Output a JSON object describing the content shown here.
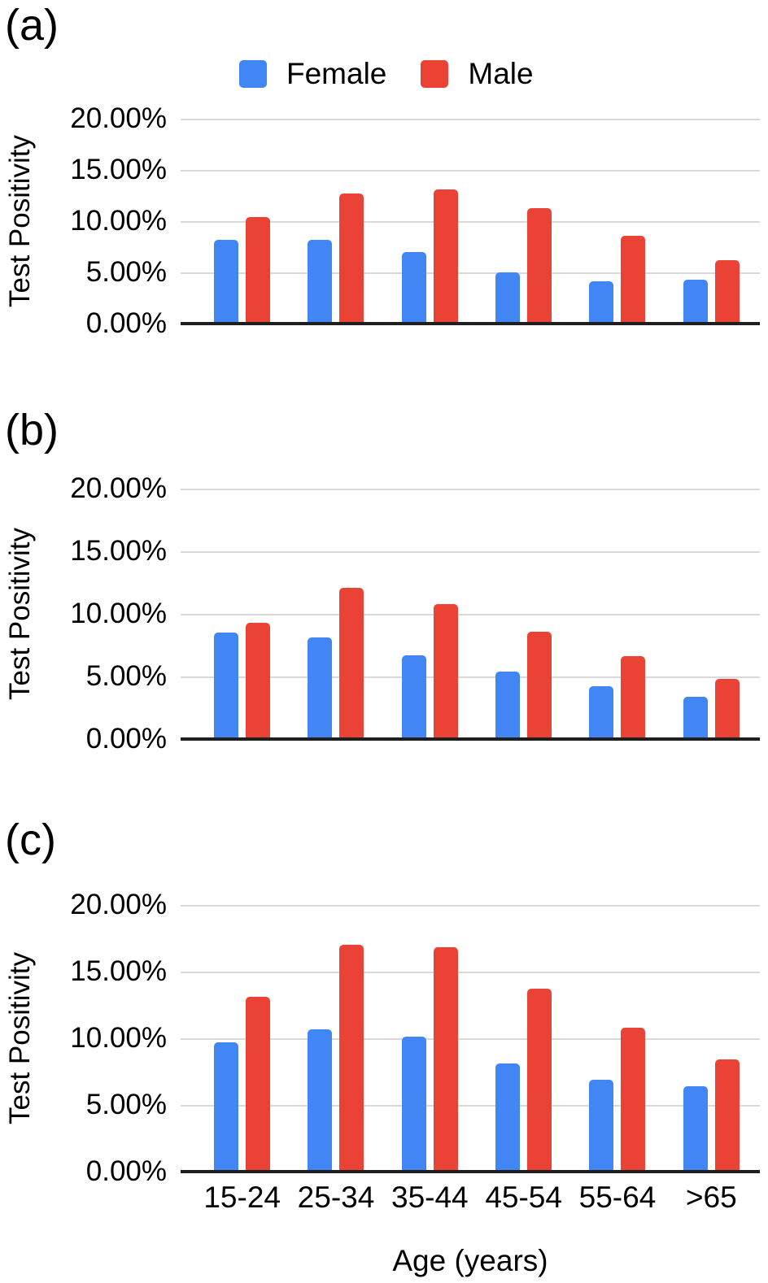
{
  "y_axis": {
    "title": "Test Positivity",
    "tick_labels": [
      "20.00%",
      "15.00%",
      "10.00%",
      "5.00%",
      "0.00%"
    ],
    "min": 0,
    "max": 20
  },
  "x_axis": {
    "title": "Age (years)",
    "categories": [
      "15-24",
      "25-34",
      "35-44",
      "45-54",
      "55-64",
      ">65"
    ]
  },
  "legend": {
    "items": [
      {
        "label": "Female",
        "color": "#4285F4"
      },
      {
        "label": "Male",
        "color": "#EA4335"
      }
    ]
  },
  "chart_data": [
    {
      "type": "bar",
      "panel_label": "(a)",
      "categories": [
        "15-24",
        "25-34",
        "35-44",
        "45-54",
        "55-64",
        ">65"
      ],
      "series": [
        {
          "name": "Female",
          "color": "#4285F4",
          "values": [
            8.2,
            8.2,
            7.0,
            5.0,
            4.1,
            4.3
          ]
        },
        {
          "name": "Male",
          "color": "#EA4335",
          "values": [
            10.4,
            12.7,
            13.1,
            11.3,
            8.6,
            6.2
          ]
        }
      ],
      "ylabel": "Test Positivity",
      "xlabel": "",
      "ylim": [
        0,
        20
      ],
      "grid": true,
      "legend_position": "top"
    },
    {
      "type": "bar",
      "panel_label": "(b)",
      "categories": [
        "15-24",
        "25-34",
        "35-44",
        "45-54",
        "55-64",
        ">65"
      ],
      "series": [
        {
          "name": "Female",
          "color": "#4285F4",
          "values": [
            8.5,
            8.1,
            6.7,
            5.4,
            4.2,
            3.4
          ]
        },
        {
          "name": "Male",
          "color": "#EA4335",
          "values": [
            9.3,
            12.1,
            10.8,
            8.6,
            6.6,
            4.8
          ]
        }
      ],
      "ylabel": "Test Positivity",
      "xlabel": "",
      "ylim": [
        0,
        20
      ],
      "grid": true,
      "legend_position": "none"
    },
    {
      "type": "bar",
      "panel_label": "(c)",
      "categories": [
        "15-24",
        "25-34",
        "35-44",
        "45-54",
        "55-64",
        ">65"
      ],
      "series": [
        {
          "name": "Female",
          "color": "#4285F4",
          "values": [
            9.7,
            10.7,
            10.1,
            8.1,
            6.9,
            6.4
          ]
        },
        {
          "name": "Male",
          "color": "#EA4335",
          "values": [
            13.1,
            17.0,
            16.8,
            13.7,
            10.8,
            8.4
          ]
        }
      ],
      "ylabel": "Test Positivity",
      "xlabel": "Age (years)",
      "ylim": [
        0,
        20
      ],
      "grid": true,
      "legend_position": "none"
    }
  ]
}
